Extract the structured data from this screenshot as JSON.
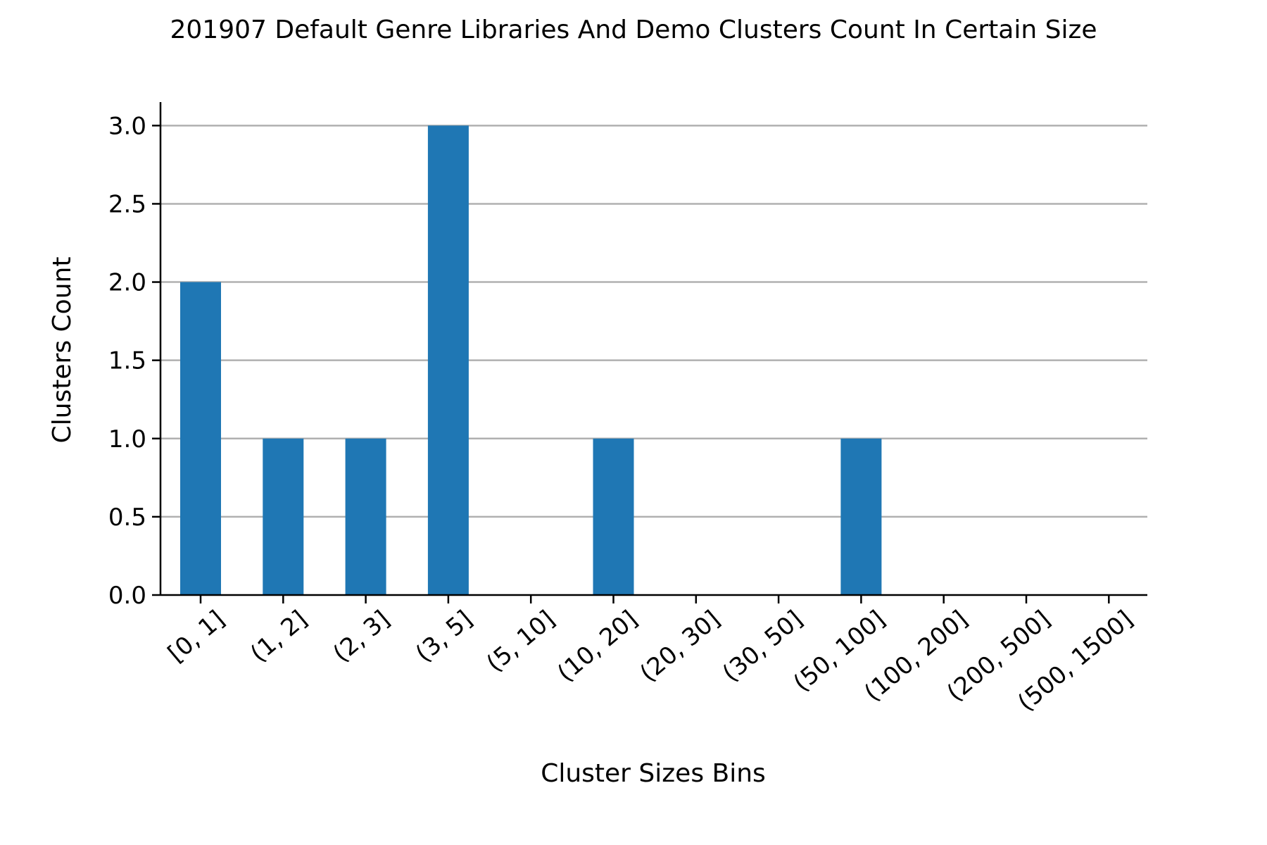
{
  "chart_data": {
    "type": "bar",
    "title": "201907 Default Genre Libraries And Demo Clusters Count In Certain Size",
    "xlabel": "Cluster Sizes Bins",
    "ylabel": "Clusters Count",
    "categories": [
      "[0, 1]",
      "(1, 2]",
      "(2, 3]",
      "(3, 5]",
      "(5, 10]",
      "(10, 20]",
      "(20, 30]",
      "(30, 50]",
      "(50, 100]",
      "(100, 200]",
      "(200, 500]",
      "(500, 1500]"
    ],
    "values": [
      2,
      1,
      1,
      3,
      0,
      1,
      0,
      0,
      1,
      0,
      0,
      0
    ],
    "ylim": [
      0,
      3.15
    ],
    "yticks": [
      "0.0",
      "0.5",
      "1.0",
      "1.5",
      "2.0",
      "2.5",
      "3.0"
    ],
    "grid": "y",
    "legend": "none",
    "colors": {
      "bar": "#1f77b4",
      "grid": "#b0b0b0",
      "axis": "#000000"
    }
  }
}
